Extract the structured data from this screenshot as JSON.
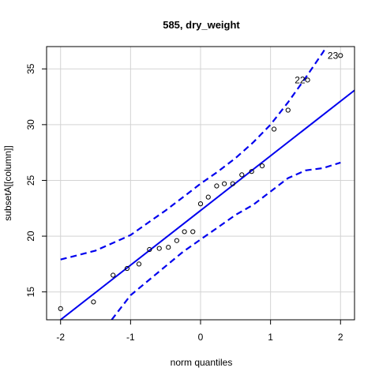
{
  "chart_data": {
    "type": "scatter",
    "title": "585, dry_weight",
    "xlabel": "norm quantiles",
    "ylabel": "subsetA[[column]]",
    "xlim": [
      -2.2,
      2.2
    ],
    "ylim": [
      12.5,
      37.0
    ],
    "x_ticks": [
      -2,
      -1,
      0,
      1,
      2
    ],
    "y_ticks": [
      15,
      20,
      25,
      30,
      35
    ],
    "grid": true,
    "points": [
      {
        "x": -2.0,
        "y": 13.5
      },
      {
        "x": -1.53,
        "y": 14.1
      },
      {
        "x": -1.25,
        "y": 16.5
      },
      {
        "x": -1.05,
        "y": 17.1
      },
      {
        "x": -0.88,
        "y": 17.5
      },
      {
        "x": -0.73,
        "y": 18.8
      },
      {
        "x": -0.59,
        "y": 18.9
      },
      {
        "x": -0.46,
        "y": 19.0
      },
      {
        "x": -0.34,
        "y": 19.6
      },
      {
        "x": -0.23,
        "y": 20.4
      },
      {
        "x": -0.11,
        "y": 20.4
      },
      {
        "x": 0.0,
        "y": 22.9
      },
      {
        "x": 0.11,
        "y": 23.5
      },
      {
        "x": 0.23,
        "y": 24.5
      },
      {
        "x": 0.34,
        "y": 24.7
      },
      {
        "x": 0.46,
        "y": 24.7
      },
      {
        "x": 0.59,
        "y": 25.5
      },
      {
        "x": 0.73,
        "y": 25.8
      },
      {
        "x": 0.88,
        "y": 26.3
      },
      {
        "x": 1.05,
        "y": 29.6
      },
      {
        "x": 1.25,
        "y": 31.3
      },
      {
        "x": 1.53,
        "y": 34.0
      },
      {
        "x": 2.0,
        "y": 36.2
      }
    ],
    "point_labels": [
      {
        "text": "22",
        "x": 1.53,
        "y": 34.0
      },
      {
        "text": "23",
        "x": 2.0,
        "y": 36.2
      }
    ],
    "reference_line": {
      "intercept": 22.3,
      "slope": 4.9
    },
    "envelope_lower": [
      {
        "x": -1.27,
        "y": 12.5
      },
      {
        "x": -1.0,
        "y": 14.7
      },
      {
        "x": -0.75,
        "y": 16.0
      },
      {
        "x": -0.5,
        "y": 17.3
      },
      {
        "x": -0.25,
        "y": 18.6
      },
      {
        "x": 0.0,
        "y": 19.7
      },
      {
        "x": 0.25,
        "y": 20.8
      },
      {
        "x": 0.5,
        "y": 21.9
      },
      {
        "x": 0.75,
        "y": 22.8
      },
      {
        "x": 1.0,
        "y": 24.0
      },
      {
        "x": 1.25,
        "y": 25.2
      },
      {
        "x": 1.5,
        "y": 25.9
      },
      {
        "x": 1.75,
        "y": 26.1
      },
      {
        "x": 2.0,
        "y": 26.6
      }
    ],
    "envelope_upper": [
      {
        "x": -2.0,
        "y": 17.9
      },
      {
        "x": -1.75,
        "y": 18.3
      },
      {
        "x": -1.5,
        "y": 18.7
      },
      {
        "x": -1.25,
        "y": 19.4
      },
      {
        "x": -1.0,
        "y": 20.1
      },
      {
        "x": -0.75,
        "y": 21.2
      },
      {
        "x": -0.5,
        "y": 22.3
      },
      {
        "x": -0.25,
        "y": 23.5
      },
      {
        "x": 0.0,
        "y": 24.7
      },
      {
        "x": 0.25,
        "y": 25.8
      },
      {
        "x": 0.5,
        "y": 27.0
      },
      {
        "x": 0.75,
        "y": 28.4
      },
      {
        "x": 1.0,
        "y": 30.0
      },
      {
        "x": 1.25,
        "y": 32.0
      },
      {
        "x": 1.5,
        "y": 34.2
      },
      {
        "x": 1.75,
        "y": 36.5
      },
      {
        "x": 1.8,
        "y": 37.0
      }
    ],
    "colors": {
      "line": "#0000ee",
      "grid": "#d3d3d3",
      "axis": "#000000",
      "point": "#000000"
    }
  }
}
